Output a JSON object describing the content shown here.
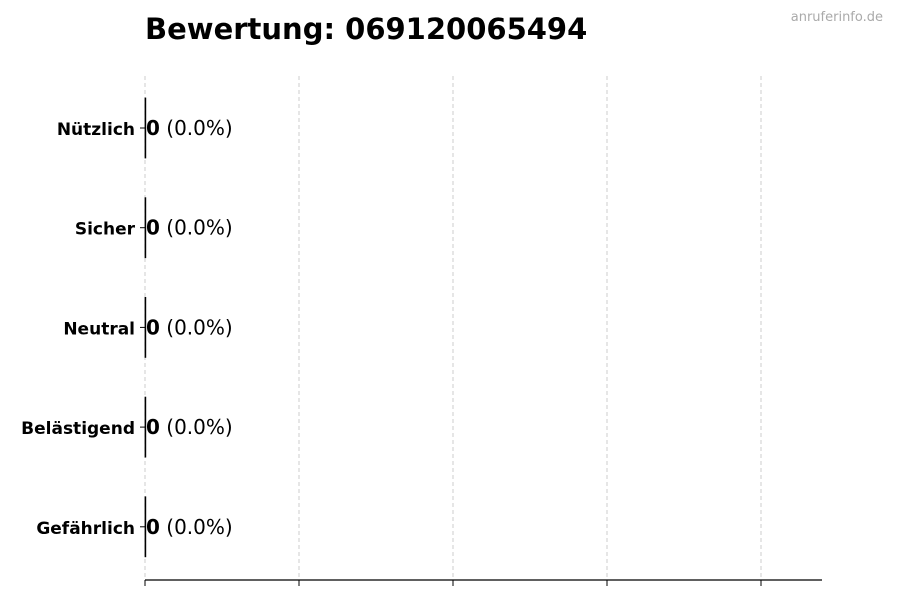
{
  "chart_data": {
    "type": "bar",
    "orientation": "horizontal",
    "title": "Bewertung: 069120065494",
    "categories": [
      "Nützlich",
      "Sicher",
      "Neutral",
      "Belästigend",
      "Gefährlich"
    ],
    "values": [
      0,
      0,
      0,
      0,
      0
    ],
    "labels": [
      {
        "count": "0",
        "percent": "(0.0%)"
      },
      {
        "count": "0",
        "percent": "(0.0%)"
      },
      {
        "count": "0",
        "percent": "(0.0%)"
      },
      {
        "count": "0",
        "percent": "(0.0%)"
      },
      {
        "count": "0",
        "percent": "(0.0%)"
      }
    ],
    "xlabel": "",
    "ylabel": "",
    "grid": "vertical dashed",
    "colors": {
      "bar_edge": "#000000",
      "grid": "#cccccc",
      "axis": "#000000"
    }
  },
  "watermark": "anruferinfo.de"
}
